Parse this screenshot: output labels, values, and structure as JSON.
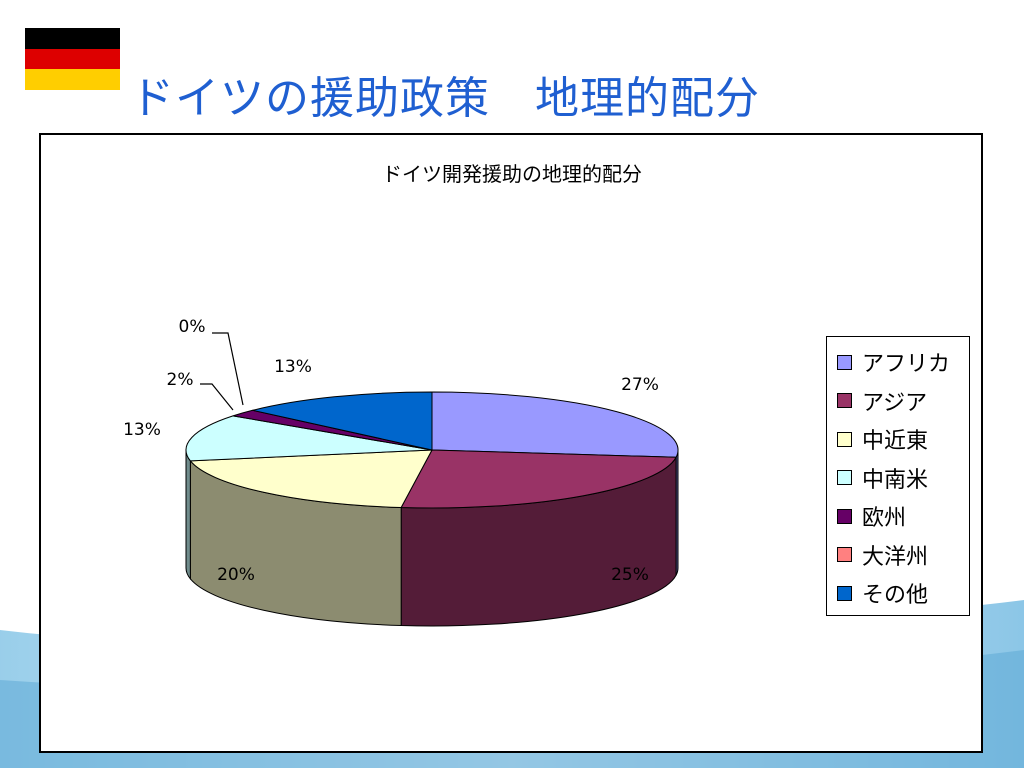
{
  "slide_title": "ドイツの援助政策　地理的配分",
  "flag": {
    "colors": [
      "#000000",
      "#dd0000",
      "#ffce00"
    ]
  },
  "chart_data": {
    "type": "pie",
    "title": "ドイツ開発援助の地理的配分",
    "categories": [
      "アフリカ",
      "アジア",
      "中近東",
      "中南米",
      "欧州",
      "大洋州",
      "その他"
    ],
    "values": [
      27,
      25,
      20,
      13,
      2,
      0,
      13
    ],
    "labels": [
      "27%",
      "25%",
      "20%",
      "13%",
      "2%",
      "0%",
      "13%"
    ],
    "colors": [
      "#9999ff",
      "#993366",
      "#ffffcc",
      "#ccffff",
      "#660066",
      "#ff8080",
      "#0066cc"
    ],
    "legend_position": "right",
    "three_d": true
  }
}
